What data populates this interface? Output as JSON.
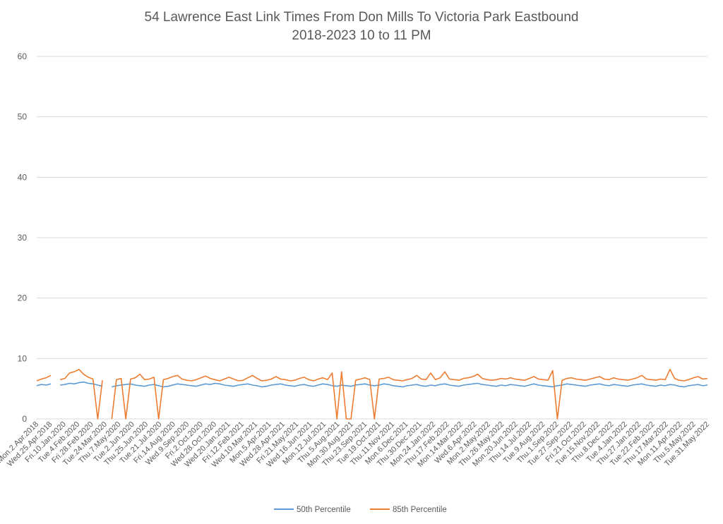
{
  "chart_data": {
    "type": "line",
    "title": "54 Lawrence East Link Times From Don Mills To Victoria Park Eastbound",
    "subtitle": "2018-2023 10 to 11 PM",
    "xlabel": "",
    "ylabel": "",
    "ylim": [
      0,
      60
    ],
    "yticks": [
      0,
      10,
      20,
      30,
      40,
      50,
      60
    ],
    "grid": true,
    "legend_position": "bottom",
    "x_ticks": [
      "Mon.2.Apr.2018",
      "Wed.25.Apr.2018",
      "Fri.10.Jan.2020",
      "Tue.4.Feb.2020",
      "Fri.28.Feb.2020",
      "Tue.24.Mar.2020",
      "Thu.7.May.2020",
      "Tue.2.Jun.2020",
      "Thu.25.Jun.2020",
      "Tue.21.Jul.2020",
      "Fri.14.Aug.2020",
      "Wed.9.Sep.2020",
      "Fri.2.Oct.2020",
      "Wed.28.Oct.2020",
      "Wed.20.Jan.2021",
      "Fri.12.Feb.2021",
      "Wed.10.Mar.2021",
      "Mon.5.Apr.2021",
      "Wed.28.Apr.2021",
      "Fri.21.May.2021",
      "Wed.16.Jun.2021",
      "Mon.12.Jul.2021",
      "Thu.5.Aug.2021",
      "Mon.30.Aug.2021",
      "Thu.23.Sep.2021",
      "Tue.19.Oct.2021",
      "Thu.11.Nov.2021",
      "Mon.6.Dec.2021",
      "Thu.30.Dec.2021",
      "Mon.24.Jan.2022",
      "Thu.17.Feb.2022",
      "Mon.14.Mar.2022",
      "Wed.6.Apr.2022",
      "Mon.2.May.2022",
      "Thu.26.May.2022",
      "Mon.20.Jun.2022",
      "Thu.14.Jul.2022",
      "Tue.9.Aug.2022",
      "Thu.1.Sep.2022",
      "Tue.27.Sep.2022",
      "Fri.21.Oct.2022",
      "Tue.15.Nov.2022",
      "Thu.8.Dec.2022",
      "Tue.4.Jan.2022",
      "Thu.27.Jan.2022",
      "Tue.22.Feb.2022",
      "Thu.17.Mar.2022",
      "Mon.11.Apr.2022",
      "Thu.5.May.2022",
      "Tue.31.May.2022"
    ],
    "series": [
      {
        "name": "50th Percentile",
        "color": "#5b9bd5",
        "values": [
          5.5,
          5.7,
          5.6,
          5.8,
          null,
          5.6,
          5.7,
          5.9,
          5.8,
          6.0,
          6.1,
          5.9,
          5.8,
          5.6,
          5.4,
          null,
          5.3,
          5.5,
          5.6,
          5.7,
          5.8,
          5.6,
          5.5,
          5.4,
          5.6,
          5.7,
          5.5,
          5.3,
          5.4,
          5.6,
          5.8,
          5.7,
          5.6,
          5.5,
          5.4,
          5.6,
          5.8,
          5.7,
          5.9,
          5.8,
          5.6,
          5.5,
          5.4,
          5.6,
          5.7,
          5.8,
          5.6,
          5.5,
          5.3,
          5.4,
          5.6,
          5.7,
          5.8,
          5.6,
          5.5,
          5.4,
          5.6,
          5.7,
          5.5,
          5.4,
          5.6,
          5.8,
          5.7,
          5.5,
          5.4,
          5.6,
          5.5,
          5.4,
          5.6,
          5.7,
          5.8,
          5.6,
          5.5,
          5.6,
          5.8,
          5.7,
          5.5,
          5.4,
          5.3,
          5.5,
          5.6,
          5.7,
          5.5,
          5.4,
          5.6,
          5.5,
          5.7,
          5.8,
          5.6,
          5.5,
          5.4,
          5.6,
          5.7,
          5.8,
          5.9,
          5.7,
          5.6,
          5.5,
          5.4,
          5.6,
          5.5,
          5.7,
          5.6,
          5.5,
          5.4,
          5.6,
          5.8,
          5.6,
          5.5,
          5.4,
          5.3,
          5.5,
          5.6,
          5.8,
          5.7,
          5.6,
          5.5,
          5.4,
          5.6,
          5.7,
          5.8,
          5.6,
          5.5,
          5.7,
          5.6,
          5.5,
          5.4,
          5.6,
          5.7,
          5.8,
          5.6,
          5.5,
          5.4,
          5.6,
          5.5,
          5.7,
          5.6,
          5.4,
          5.3,
          5.5,
          5.6,
          5.7,
          5.5,
          5.6
        ]
      },
      {
        "name": "85th Percentile",
        "color": "#ed7d31",
        "values": [
          6.3,
          6.6,
          6.8,
          7.2,
          null,
          6.5,
          6.7,
          7.6,
          7.8,
          8.2,
          7.4,
          6.9,
          6.6,
          0,
          6.4,
          null,
          0,
          6.5,
          6.7,
          0,
          6.6,
          6.8,
          7.4,
          6.5,
          6.6,
          6.9,
          0,
          6.5,
          6.7,
          7.0,
          7.2,
          6.6,
          6.4,
          6.3,
          6.5,
          6.8,
          7.1,
          6.7,
          6.5,
          6.3,
          6.6,
          6.9,
          6.6,
          6.3,
          6.4,
          6.8,
          7.2,
          6.7,
          6.3,
          6.4,
          6.6,
          7.0,
          6.6,
          6.5,
          6.3,
          6.4,
          6.7,
          6.9,
          6.5,
          6.3,
          6.6,
          6.8,
          6.5,
          7.6,
          0,
          7.8,
          0,
          0,
          6.4,
          6.6,
          6.8,
          6.5,
          0,
          6.6,
          6.7,
          6.9,
          6.5,
          6.4,
          6.3,
          6.5,
          6.7,
          7.2,
          6.6,
          6.5,
          7.6,
          6.5,
          6.8,
          7.8,
          6.6,
          6.5,
          6.4,
          6.7,
          6.8,
          7.0,
          7.4,
          6.7,
          6.5,
          6.4,
          6.5,
          6.7,
          6.6,
          6.8,
          6.6,
          6.5,
          6.4,
          6.7,
          7.0,
          6.6,
          6.5,
          6.4,
          8.0,
          0,
          6.4,
          6.7,
          6.8,
          6.6,
          6.5,
          6.4,
          6.6,
          6.8,
          7.0,
          6.6,
          6.5,
          6.8,
          6.6,
          6.5,
          6.4,
          6.6,
          6.8,
          7.2,
          6.6,
          6.5,
          6.4,
          6.6,
          6.5,
          8.2,
          6.7,
          6.4,
          6.3,
          6.5,
          6.8,
          7.0,
          6.6,
          6.7
        ]
      }
    ]
  }
}
